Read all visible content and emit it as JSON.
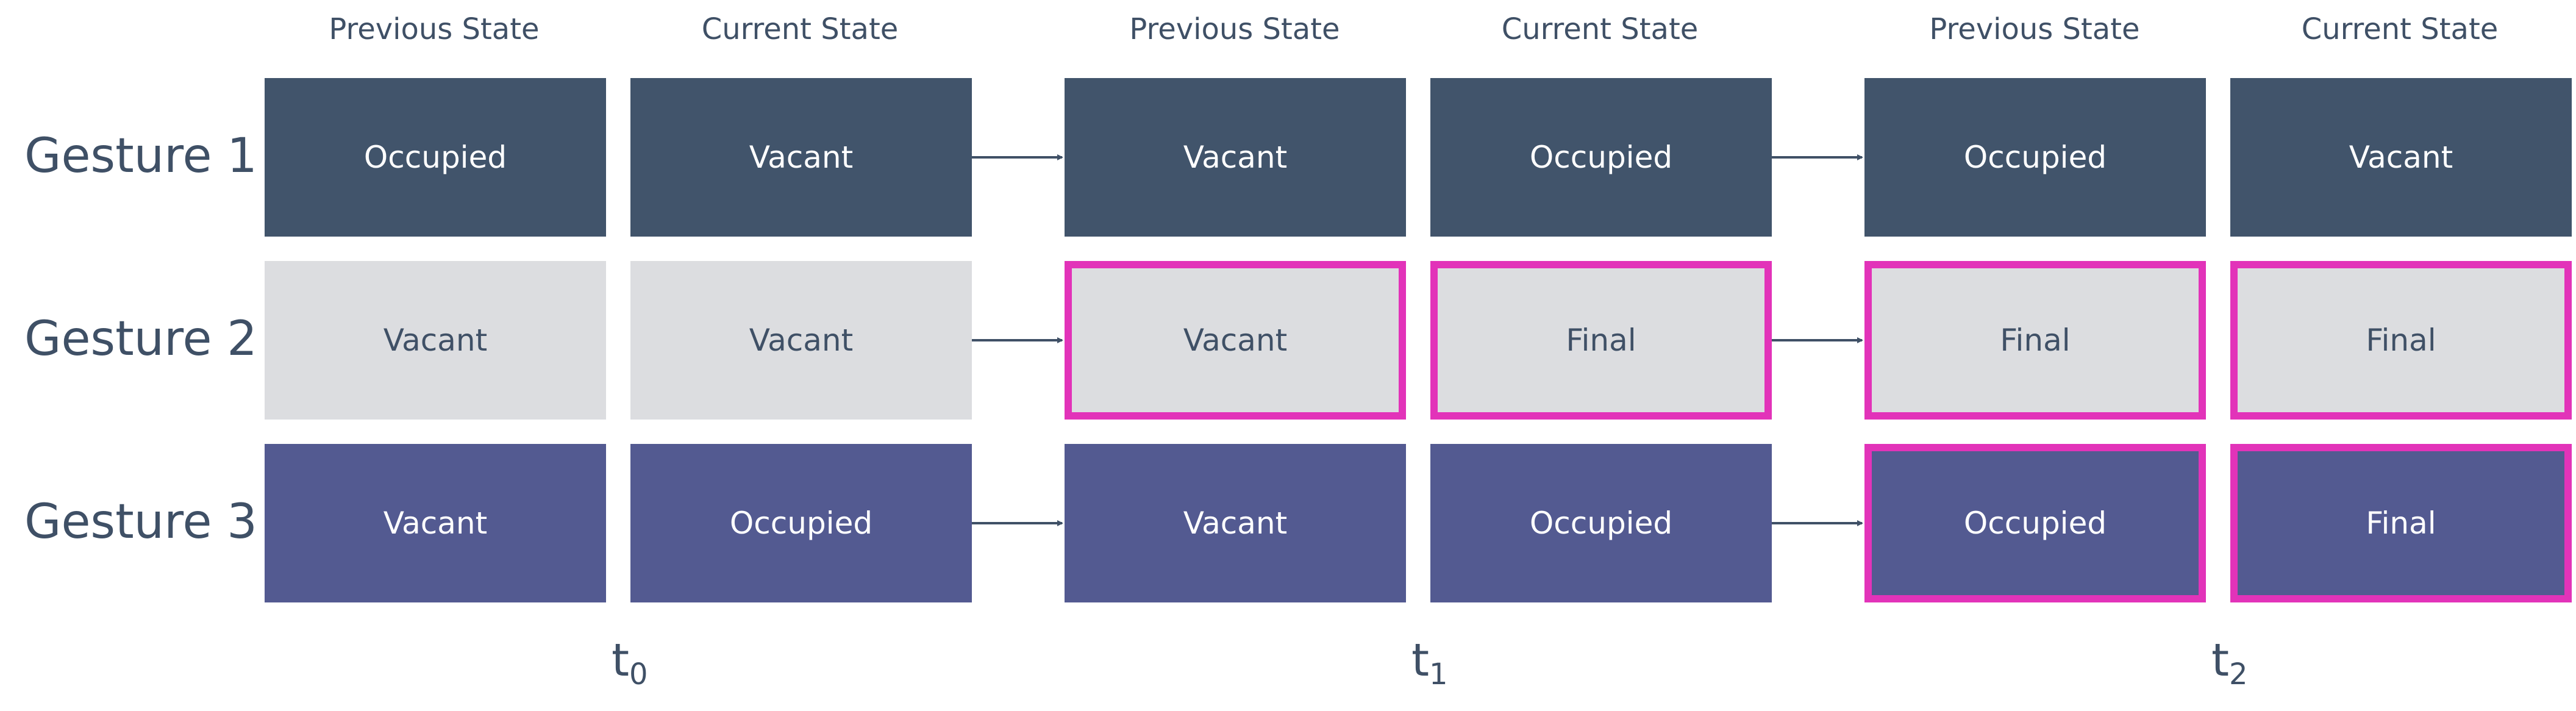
{
  "columns": [
    {
      "header": "Previous State"
    },
    {
      "header": "Current State"
    },
    {
      "header": "Previous State"
    },
    {
      "header": "Current State"
    },
    {
      "header": "Previous State"
    },
    {
      "header": "Current State"
    }
  ],
  "rows": [
    {
      "label": "Gesture 1",
      "fill": "#41546b",
      "text_color": "#ffffff",
      "cells": [
        {
          "text": "Occupied",
          "highlighted": false
        },
        {
          "text": "Vacant",
          "highlighted": false
        },
        {
          "text": "Vacant",
          "highlighted": false
        },
        {
          "text": "Occupied",
          "highlighted": false
        },
        {
          "text": "Occupied",
          "highlighted": false
        },
        {
          "text": "Vacant",
          "highlighted": false
        }
      ]
    },
    {
      "label": "Gesture 2",
      "fill": "#dcdde0",
      "text_color": "#3f5066",
      "cells": [
        {
          "text": "Vacant",
          "highlighted": false
        },
        {
          "text": "Vacant",
          "highlighted": false
        },
        {
          "text": "Vacant",
          "highlighted": true
        },
        {
          "text": "Final",
          "highlighted": true
        },
        {
          "text": "Final",
          "highlighted": true
        },
        {
          "text": "Final",
          "highlighted": true
        }
      ]
    },
    {
      "label": "Gesture 3",
      "fill": "#535a91",
      "text_color": "#ffffff",
      "cells": [
        {
          "text": "Vacant",
          "highlighted": false
        },
        {
          "text": "Occupied",
          "highlighted": false
        },
        {
          "text": "Vacant",
          "highlighted": false
        },
        {
          "text": "Occupied",
          "highlighted": false
        },
        {
          "text": "Occupied",
          "highlighted": true
        },
        {
          "text": "Final",
          "highlighted": true
        }
      ]
    }
  ],
  "time_steps": [
    {
      "base": "t",
      "sub": "0"
    },
    {
      "base": "t",
      "sub": "1"
    },
    {
      "base": "t",
      "sub": "2"
    }
  ],
  "colors": {
    "highlight": "#e233b9",
    "arrow": "#3f5066",
    "label": "#3f5066"
  }
}
